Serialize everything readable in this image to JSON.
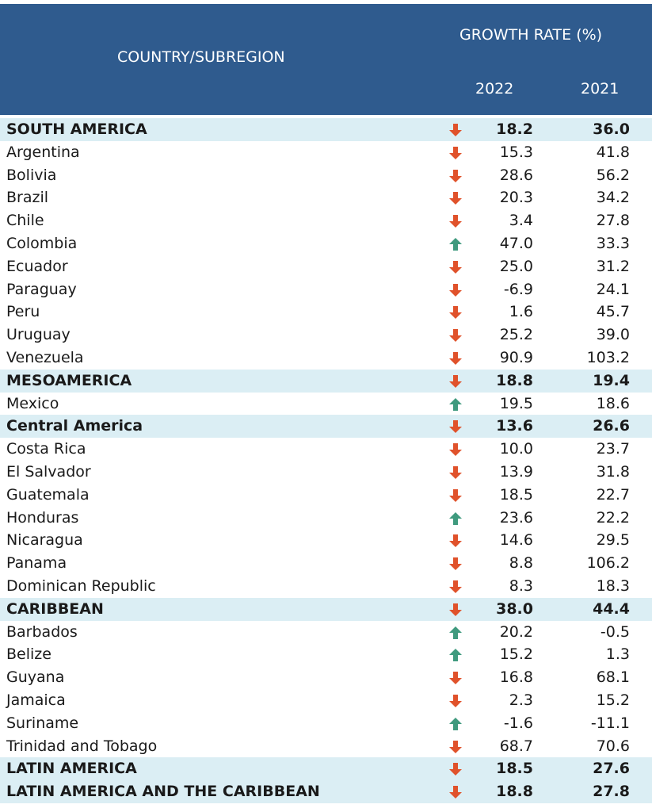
{
  "table": {
    "header": {
      "name": "COUNTRY/SUBREGION",
      "group": "GROWTH RATE (%)",
      "years": [
        "2022",
        "2021"
      ]
    },
    "rows": [
      {
        "name": "SOUTH AMERICA",
        "subregion": true,
        "trend": "down",
        "values": [
          "18.2",
          "36.0"
        ]
      },
      {
        "name": "Argentina",
        "trend": "down",
        "values": [
          "15.3",
          "41.8"
        ]
      },
      {
        "name": "Bolivia",
        "trend": "down",
        "values": [
          "28.6",
          "56.2"
        ]
      },
      {
        "name": "Brazil",
        "trend": "down",
        "values": [
          "20.3",
          "34.2"
        ]
      },
      {
        "name": "Chile",
        "trend": "down",
        "values": [
          "3.4",
          "27.8"
        ]
      },
      {
        "name": "Colombia",
        "trend": "up",
        "values": [
          "47.0",
          "33.3"
        ]
      },
      {
        "name": "Ecuador",
        "trend": "down",
        "values": [
          "25.0",
          "31.2"
        ]
      },
      {
        "name": "Paraguay",
        "trend": "down",
        "values": [
          "-6.9",
          "24.1"
        ]
      },
      {
        "name": "Peru",
        "trend": "down",
        "values": [
          "1.6",
          "45.7"
        ]
      },
      {
        "name": "Uruguay",
        "trend": "down",
        "values": [
          "25.2",
          "39.0"
        ]
      },
      {
        "name": "Venezuela",
        "trend": "down",
        "values": [
          "90.9",
          "103.2"
        ]
      },
      {
        "name": "MESOAMERICA",
        "subregion": true,
        "trend": "down",
        "values": [
          "18.8",
          "19.4"
        ]
      },
      {
        "name": "Mexico",
        "trend": "up",
        "values": [
          "19.5",
          "18.6"
        ]
      },
      {
        "name": "Central America",
        "subregion": true,
        "trend": "down",
        "values": [
          "13.6",
          "26.6"
        ]
      },
      {
        "name": "Costa Rica",
        "trend": "down",
        "values": [
          "10.0",
          "23.7"
        ]
      },
      {
        "name": "El Salvador",
        "trend": "down",
        "values": [
          "13.9",
          "31.8"
        ]
      },
      {
        "name": "Guatemala",
        "trend": "down",
        "values": [
          "18.5",
          "22.7"
        ]
      },
      {
        "name": "Honduras",
        "trend": "up",
        "values": [
          "23.6",
          "22.2"
        ]
      },
      {
        "name": "Nicaragua",
        "trend": "down",
        "values": [
          "14.6",
          "29.5"
        ]
      },
      {
        "name": "Panama",
        "trend": "down",
        "values": [
          "8.8",
          "106.2"
        ]
      },
      {
        "name": "Dominican Republic",
        "trend": "down",
        "values": [
          "8.3",
          "18.3"
        ]
      },
      {
        "name": "CARIBBEAN",
        "subregion": true,
        "trend": "down",
        "values": [
          "38.0",
          "44.4"
        ]
      },
      {
        "name": "Barbados",
        "trend": "up",
        "values": [
          "20.2",
          "-0.5"
        ]
      },
      {
        "name": "Belize",
        "trend": "up",
        "values": [
          "15.2",
          "1.3"
        ]
      },
      {
        "name": "Guyana",
        "trend": "down",
        "values": [
          "16.8",
          "68.1"
        ]
      },
      {
        "name": "Jamaica",
        "trend": "down",
        "values": [
          "2.3",
          "15.2"
        ]
      },
      {
        "name": "Suriname",
        "trend": "up",
        "values": [
          "-1.6",
          "-11.1"
        ]
      },
      {
        "name": "Trinidad and Tobago",
        "trend": "down",
        "values": [
          "68.7",
          "70.6"
        ]
      },
      {
        "name": "LATIN AMERICA",
        "subregion": true,
        "trend": "down",
        "values": [
          "18.5",
          "27.6"
        ]
      },
      {
        "name": "LATIN AMERICA AND THE CARIBBEAN",
        "subregion": true,
        "trend": "down",
        "values": [
          "18.8",
          "27.8"
        ]
      }
    ]
  }
}
